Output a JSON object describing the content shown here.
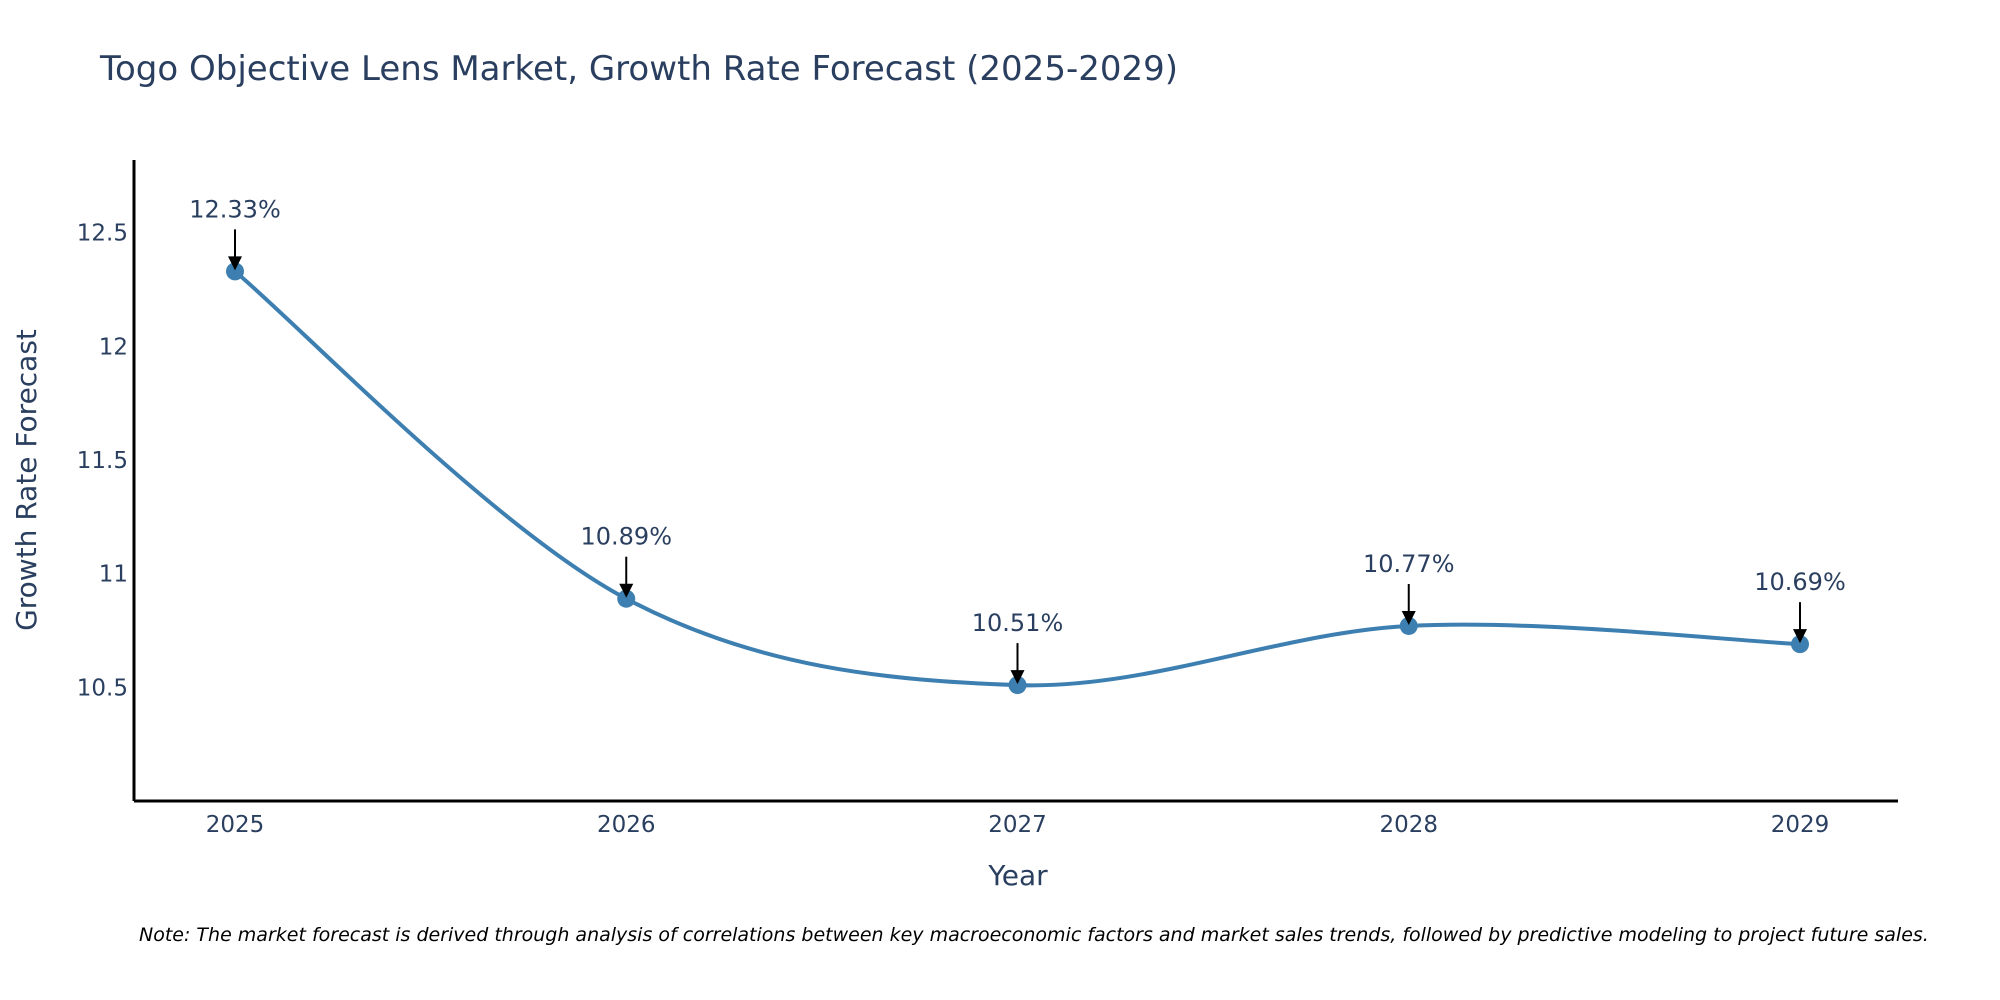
{
  "chart_data": {
    "type": "line",
    "title": "Togo Objective Lens Market, Growth Rate Forecast (2025-2029)",
    "xlabel": "Year",
    "ylabel": "Growth Rate Forecast",
    "categories": [
      "2025",
      "2026",
      "2027",
      "2028",
      "2029"
    ],
    "series": [
      {
        "name": "Growth Rate Forecast",
        "values": [
          12.33,
          10.89,
          10.51,
          10.77,
          10.69
        ],
        "color": "#3d7fb0"
      }
    ],
    "data_labels": [
      "12.33%",
      "10.89%",
      "10.51%",
      "10.77%",
      "10.69%"
    ],
    "yticks": [
      10.5,
      11,
      11.5,
      12,
      12.5
    ],
    "ytick_labels": [
      "10.5",
      "11",
      "11.5",
      "12",
      "12.5"
    ],
    "ylim": [
      10.0,
      12.82
    ],
    "grid": false,
    "line_shape": "spline",
    "note": "Note: The market forecast is derived through analysis of correlations between key macroeconomic factors and market sales trends, followed by predictive modeling to project future sales."
  }
}
